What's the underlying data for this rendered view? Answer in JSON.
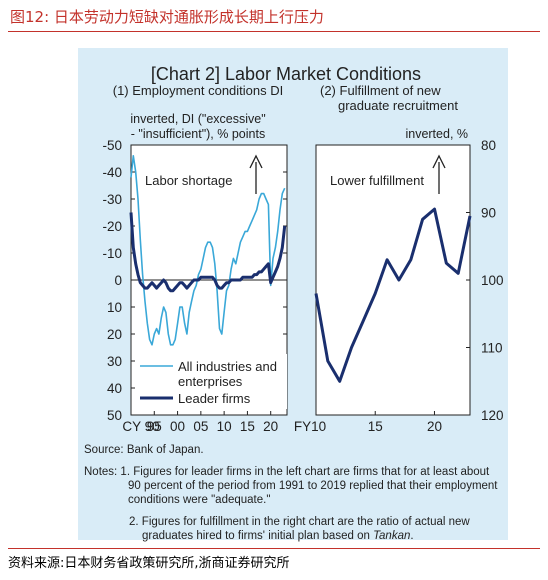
{
  "figure_title": "图12:  日本劳动力短缺对通胀形成长期上行压力",
  "source_line": "资料来源:日本财务省政策研究所,浙商证券研究所",
  "chart_title": "[Chart 2] Labor Market Conditions",
  "footer": {
    "source": "Source: Bank of Japan.",
    "notes_prefix": "Notes: 1.",
    "note1": "Figures for leader firms in the left chart are firms that for at least about 90 percent of the period from 1991 to 2019 replied that their employment conditions were \"adequate.\"",
    "note2": "Figures for fulfillment in the right chart are the ratio of actual new graduates hired to firms' initial plan based on ",
    "note2_italic": "Tankan",
    "note2_end": "."
  },
  "chart_data": [
    {
      "type": "line",
      "title": "(1) Employment conditions DI",
      "ylabel": [
        "inverted, DI (\"excessive\"",
        "- \"insufficient\"), % points"
      ],
      "annotation": "Labor shortage",
      "y_inverted": true,
      "ylim": [
        -50,
        50
      ],
      "yticks": [
        -50,
        -40,
        -30,
        -20,
        -10,
        0,
        10,
        20,
        30,
        40,
        50
      ],
      "xlim": [
        1990,
        2023.5
      ],
      "xticks": [
        1990,
        1995,
        2000,
        2005,
        2010,
        2015,
        2020
      ],
      "xtick_labels": [
        "CY 90",
        "95",
        "00",
        "05",
        "10",
        "15",
        "20"
      ],
      "series": [
        {
          "name": "All industries and enterprises",
          "color": "#3aa8d8",
          "x": [
            1990,
            1990.5,
            1991,
            1991.5,
            1992,
            1992.5,
            1993,
            1993.5,
            1994,
            1994.5,
            1995,
            1995.5,
            1996,
            1996.5,
            1997,
            1997.5,
            1998,
            1998.5,
            1999,
            1999.5,
            2000,
            2000.5,
            2001,
            2001.5,
            2002,
            2002.5,
            2003,
            2003.5,
            2004,
            2004.5,
            2005,
            2005.5,
            2006,
            2006.5,
            2007,
            2007.5,
            2008,
            2008.5,
            2009,
            2009.5,
            2010,
            2010.5,
            2011,
            2011.5,
            2012,
            2012.5,
            2013,
            2013.5,
            2014,
            2014.5,
            2015,
            2015.5,
            2016,
            2016.5,
            2017,
            2017.5,
            2018,
            2018.5,
            2019,
            2019.5,
            2020,
            2020.5,
            2021,
            2021.5,
            2022,
            2022.5,
            2023
          ],
          "y": [
            -38,
            -46,
            -40,
            -30,
            -15,
            -2,
            8,
            16,
            22,
            24,
            20,
            18,
            20,
            14,
            10,
            12,
            20,
            24,
            24,
            22,
            16,
            10,
            10,
            16,
            20,
            12,
            8,
            4,
            2,
            -2,
            -4,
            -8,
            -12,
            -14,
            -14,
            -12,
            -6,
            4,
            18,
            20,
            12,
            4,
            2,
            -4,
            -8,
            -6,
            -10,
            -14,
            -16,
            -18,
            -18,
            -20,
            -22,
            -24,
            -26,
            -30,
            -32,
            -32,
            -30,
            -28,
            2,
            -8,
            -12,
            -18,
            -26,
            -32,
            -34
          ]
        },
        {
          "name": "Leader firms",
          "color": "#1a2f6e",
          "x": [
            1990,
            1990.5,
            1991,
            1991.5,
            1992,
            1992.5,
            1993,
            1993.5,
            1994,
            1994.5,
            1995,
            1995.5,
            1996,
            1996.5,
            1997,
            1997.5,
            1998,
            1998.5,
            1999,
            1999.5,
            2000,
            2000.5,
            2001,
            2001.5,
            2002,
            2002.5,
            2003,
            2003.5,
            2004,
            2004.5,
            2005,
            2005.5,
            2006,
            2006.5,
            2007,
            2007.5,
            2008,
            2008.5,
            2009,
            2009.5,
            2010,
            2010.5,
            2011,
            2011.5,
            2012,
            2012.5,
            2013,
            2013.5,
            2014,
            2014.5,
            2015,
            2015.5,
            2016,
            2016.5,
            2017,
            2017.5,
            2018,
            2018.5,
            2019,
            2019.5,
            2020,
            2020.5,
            2021,
            2021.5,
            2022,
            2022.5,
            2023
          ],
          "y": [
            -25,
            -12,
            -6,
            -2,
            1,
            2,
            3,
            3,
            2,
            1,
            2,
            3,
            2,
            1,
            0,
            1,
            3,
            4,
            4,
            3,
            2,
            1,
            1,
            2,
            3,
            2,
            1,
            0,
            0,
            0,
            -1,
            -1,
            -1,
            -1,
            -1,
            -1,
            0,
            2,
            3,
            3,
            2,
            1,
            1,
            0,
            0,
            0,
            0,
            0,
            -1,
            -1,
            -1,
            -1,
            -1,
            -2,
            -2,
            -3,
            -3,
            -4,
            -5,
            -6,
            1,
            -1,
            -3,
            -5,
            -8,
            -12,
            -20
          ]
        }
      ]
    },
    {
      "type": "line",
      "title": [
        "(2) Fulfillment of new",
        "graduate recruitment"
      ],
      "ylabel": "inverted, %",
      "annotation": "Lower fulfillment",
      "y_inverted": true,
      "ylim": [
        80,
        120
      ],
      "yticks": [
        80,
        90,
        100,
        110,
        120
      ],
      "xlim": [
        2010,
        2023
      ],
      "xticks": [
        2010,
        2015,
        2020
      ],
      "xtick_labels": [
        "FY10",
        "15",
        "20"
      ],
      "series": [
        {
          "color": "#1a2f6e",
          "x": [
            2010,
            2011,
            2012,
            2013,
            2014,
            2015,
            2016,
            2017,
            2018,
            2019,
            2020,
            2021,
            2022,
            2023
          ],
          "y": [
            102,
            112,
            115,
            110,
            106,
            102,
            97,
            100,
            97,
            91,
            89.5,
            97.5,
            99,
            90.5
          ]
        }
      ]
    }
  ]
}
